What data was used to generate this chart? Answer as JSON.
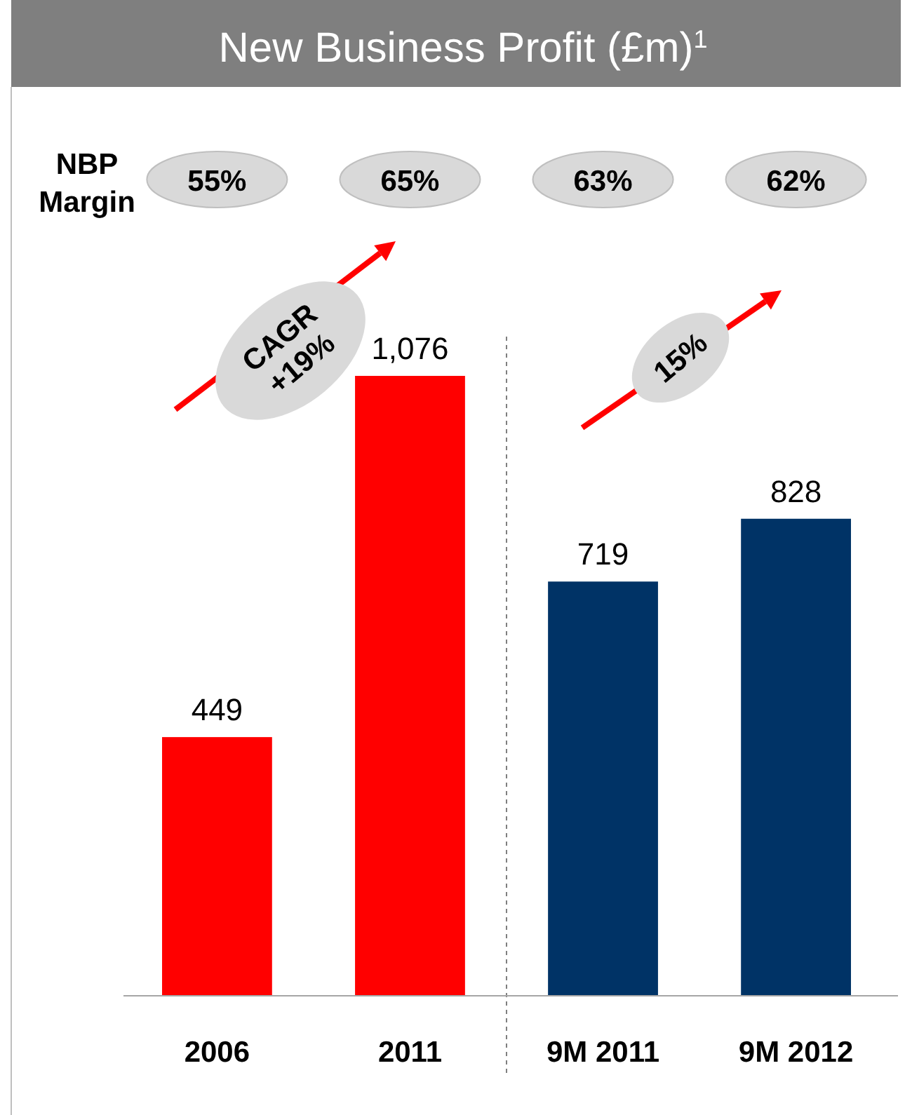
{
  "chart_data": {
    "type": "bar",
    "title": "New Business Profit (£m)$^{1}$",
    "categories": [
      "2006",
      "2011",
      "9M 2011",
      "9M 2012"
    ],
    "values": [
      449,
      1076,
      719,
      828
    ],
    "colors": [
      "#ff0000",
      "#ff0000",
      "#003366",
      "#003366"
    ],
    "value_labels": [
      "449",
      "1,076",
      "719",
      "828"
    ],
    "annotations": [
      "NBP Margin",
      "55%",
      "65%",
      "63%",
      "62%",
      "CAGR +19%",
      "15%"
    ]
  }
}
